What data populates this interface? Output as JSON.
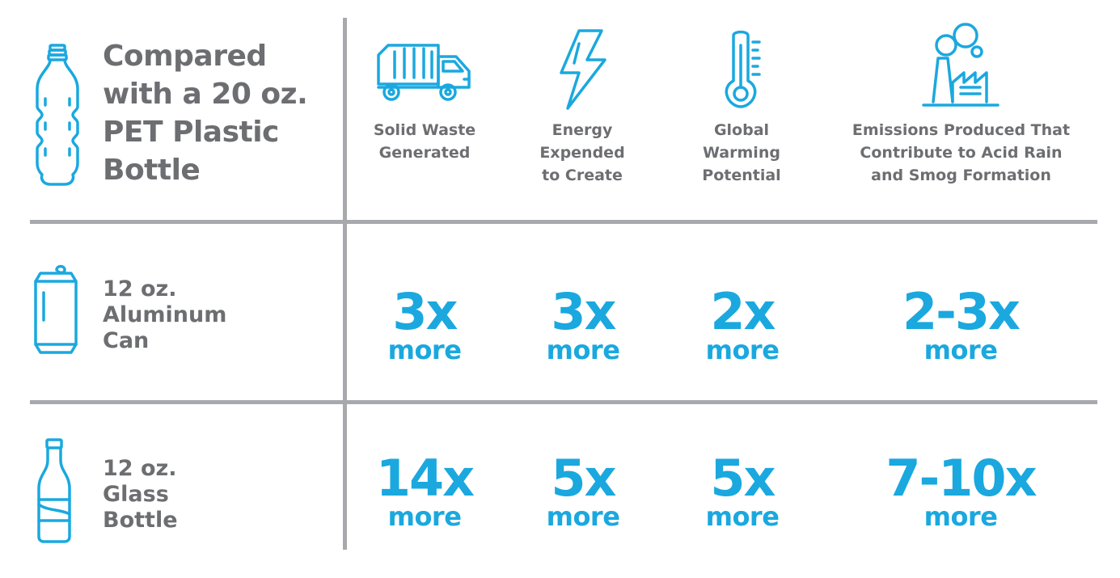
{
  "header": {
    "title_lines": [
      "Compared",
      "with a 20 oz.",
      "PET Plastic",
      "Bottle"
    ]
  },
  "columns": [
    {
      "label_lines": [
        "Solid Waste",
        "Generated"
      ],
      "icon": "garbage-truck-icon"
    },
    {
      "label_lines": [
        "Energy",
        "Expended",
        "to Create"
      ],
      "icon": "lightning-bolt-icon"
    },
    {
      "label_lines": [
        "Global",
        "Warming",
        "Potential"
      ],
      "icon": "thermometer-icon"
    },
    {
      "label_lines": [
        "Emissions Produced That",
        "Contribute to Acid Rain",
        "and Smog Formation"
      ],
      "icon": "factory-icon"
    }
  ],
  "rows": [
    {
      "label_lines": [
        "12 oz.",
        "Aluminum",
        "Can"
      ],
      "icon": "aluminum-can-icon",
      "values": [
        "3x",
        "3x",
        "2x",
        "2-3x"
      ],
      "unit": "more"
    },
    {
      "label_lines": [
        "12 oz.",
        "Glass",
        "Bottle"
      ],
      "icon": "glass-bottle-icon",
      "values": [
        "14x",
        "5x",
        "5x",
        "7-10x"
      ],
      "unit": "more"
    }
  ],
  "colors": {
    "accent": "#1aa8df",
    "text_gray": "#6d6e71",
    "divider": "#a7a9ac"
  }
}
